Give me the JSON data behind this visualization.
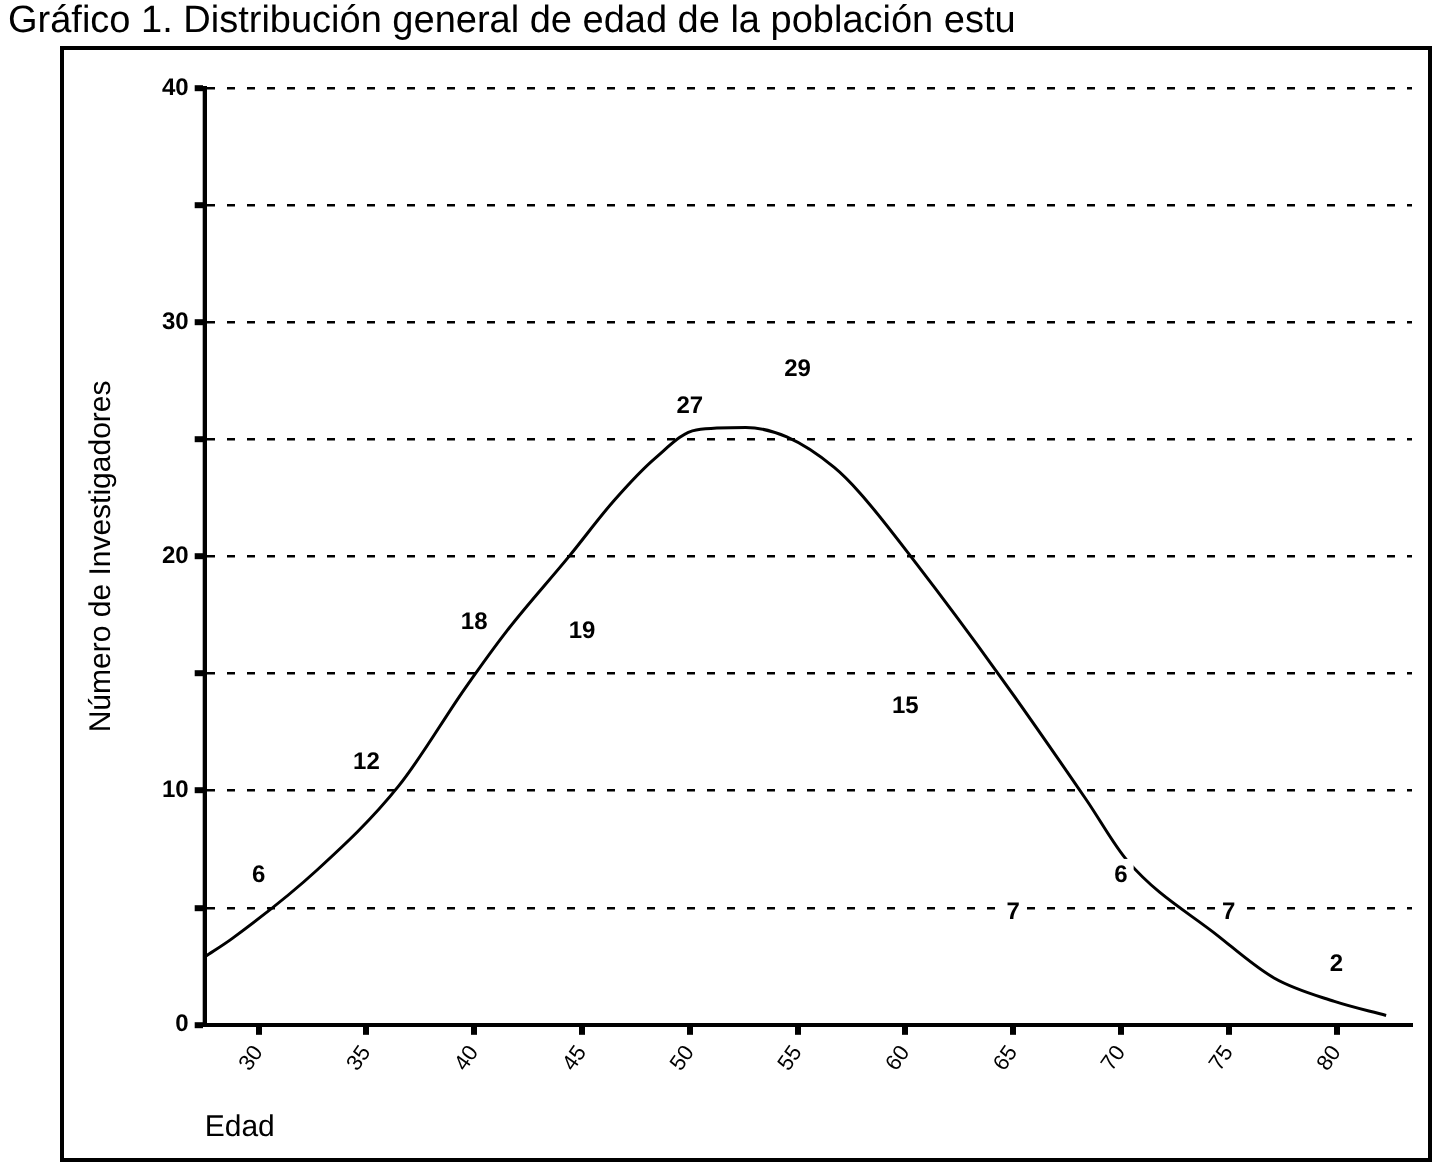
{
  "chart_data": {
    "type": "line",
    "title": "Gráfico 1. Distribución general de edad de la población estu",
    "xlabel": "Edad",
    "ylabel": "Número de Investigadores",
    "xlim": [
      27.5,
      83.5
    ],
    "xticks": [
      30,
      35,
      40,
      45,
      50,
      55,
      60,
      65,
      70,
      75,
      80
    ],
    "ylim": [
      0,
      40
    ],
    "yticks": [
      0,
      {
        "value": 5,
        "label": null
      },
      10,
      {
        "value": 15,
        "label": null
      },
      20,
      {
        "value": 25,
        "label": null
      },
      30,
      {
        "value": 35,
        "label": null
      },
      40
    ],
    "grid": "y",
    "legend": false,
    "marker": "none",
    "series": [
      {
        "color": "#000000",
        "x": [
          27.5,
          28.8,
          32.7,
          36.5,
          39.6,
          41.5,
          44.4,
          46.5,
          48.4,
          50.3,
          52.6,
          54.5,
          56.7,
          57.9,
          60.5,
          64.3,
          68.4,
          70.3,
          74.5,
          77.1,
          79.9,
          82.3
        ],
        "values": [
          2.9,
          3.7,
          6.6,
          10.2,
          14.4,
          16.8,
          20,
          22.4,
          24.2,
          25.4,
          25.5,
          25.1,
          23.8,
          22.7,
          19.7,
          15,
          9.6,
          7,
          3.8,
          2,
          1,
          0.4
        ]
      }
    ],
    "annotations": [
      "6",
      "12",
      "18",
      "19",
      "27",
      "29",
      "15",
      "7",
      "6",
      "7",
      "2"
    ]
  }
}
